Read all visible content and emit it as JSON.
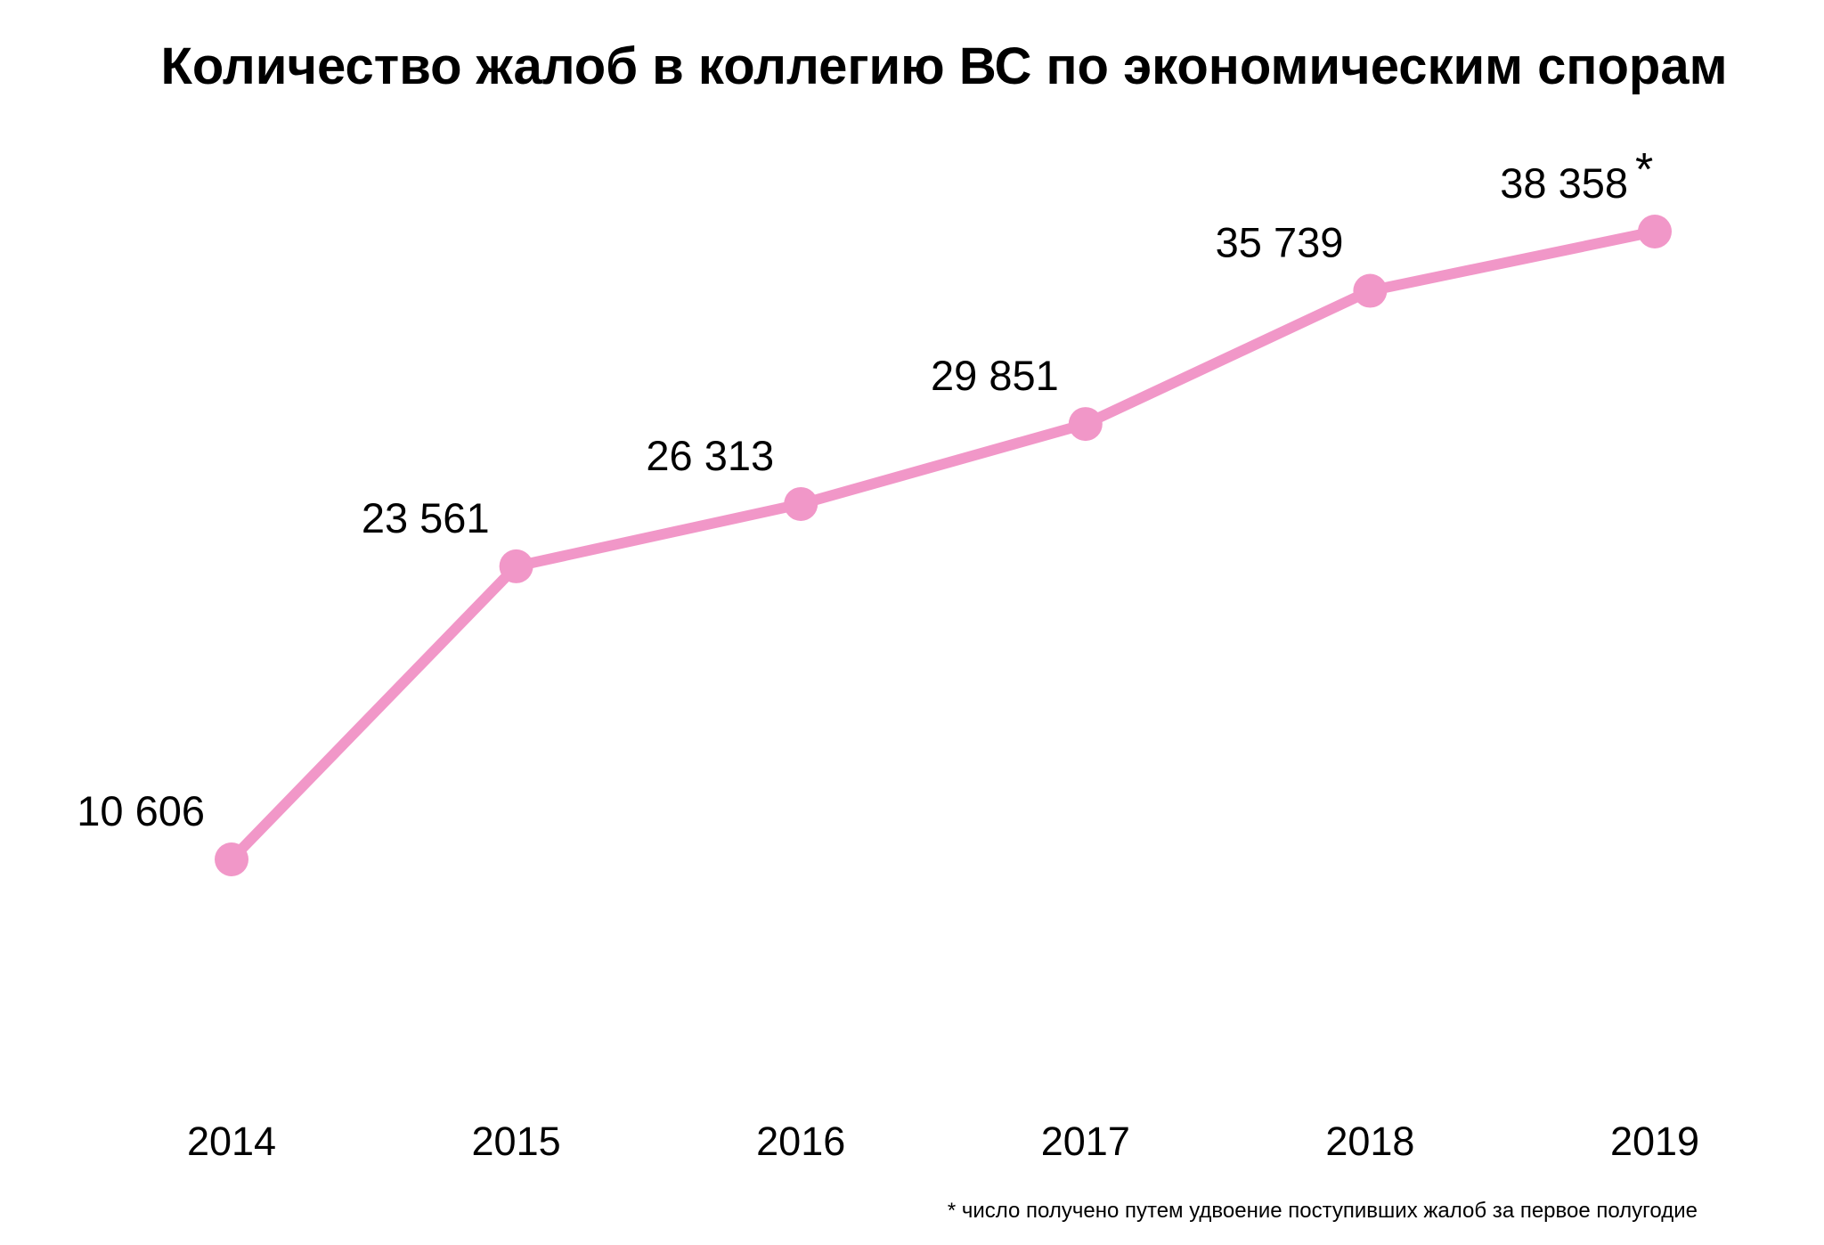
{
  "chart_data": {
    "type": "line",
    "title": "Количество жалоб в коллегию ВС по экономическим спорам",
    "categories": [
      "2014",
      "2015",
      "2016",
      "2017",
      "2018",
      "2019"
    ],
    "values": [
      10606,
      23561,
      26313,
      29851,
      35739,
      38358
    ],
    "data_labels": [
      "10 606",
      "23 561",
      "26 313",
      "29 851",
      "35 739",
      "38 358"
    ],
    "annotations": [
      {
        "category": "2019",
        "text": "*"
      }
    ],
    "footnote": "* число получено путем удвоение поступивших жалоб за первое полугодие",
    "line_color": "#f197c8",
    "marker_color": "#f197c8",
    "grid": false,
    "y_axis_visible": false,
    "legend": "none"
  }
}
